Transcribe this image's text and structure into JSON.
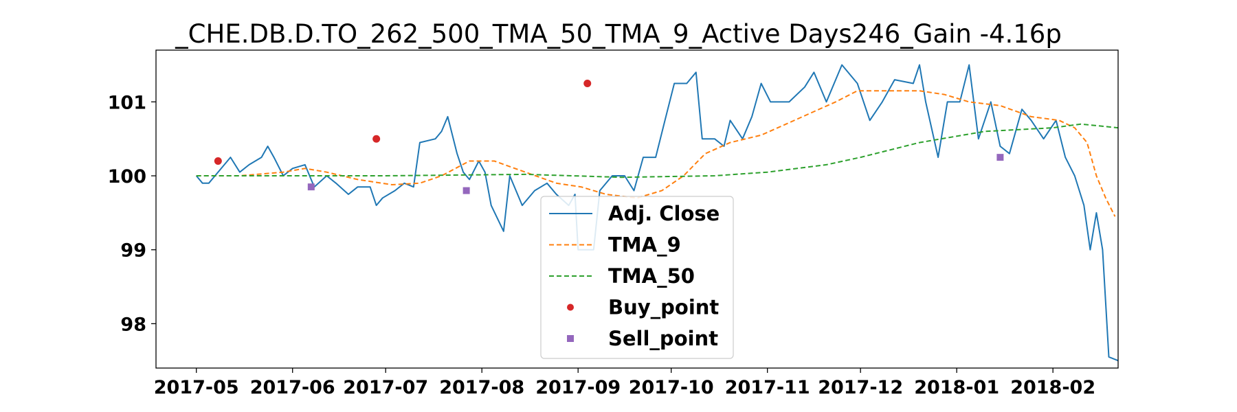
{
  "chart_data": {
    "type": "line",
    "title": "_CHE.DB.D.TO_262_500_TMA_50_TMA_9_Active Days246_Gain  -4.16p",
    "xlabel": "",
    "ylabel": "",
    "x_range": [
      "2017-04-18",
      "2018-02-22"
    ],
    "ylim": [
      97.4,
      101.7
    ],
    "x_ticks": [
      "2017-05",
      "2017-06",
      "2017-07",
      "2017-08",
      "2017-09",
      "2017-10",
      "2017-11",
      "2017-12",
      "2018-01",
      "2018-02"
    ],
    "y_ticks": [
      98,
      99,
      100,
      101
    ],
    "grid": false,
    "legend_position": "lower center",
    "colors": {
      "adj_close": "#1f77b4",
      "tma_9": "#ff7f0e",
      "tma_50": "#2ca02c",
      "buy": "#d62728",
      "sell": "#9467bd"
    },
    "series": [
      {
        "name": "Adj. Close",
        "style": "solid",
        "points": [
          [
            "2017-05-01",
            100.0
          ],
          [
            "2017-05-03",
            99.9
          ],
          [
            "2017-05-05",
            99.9
          ],
          [
            "2017-05-10",
            100.15
          ],
          [
            "2017-05-12",
            100.25
          ],
          [
            "2017-05-15",
            100.05
          ],
          [
            "2017-05-18",
            100.15
          ],
          [
            "2017-05-22",
            100.25
          ],
          [
            "2017-05-24",
            100.4
          ],
          [
            "2017-05-26",
            100.25
          ],
          [
            "2017-05-29",
            100.0
          ],
          [
            "2017-06-01",
            100.1
          ],
          [
            "2017-06-05",
            100.15
          ],
          [
            "2017-06-08",
            99.85
          ],
          [
            "2017-06-12",
            100.0
          ],
          [
            "2017-06-15",
            99.9
          ],
          [
            "2017-06-19",
            99.75
          ],
          [
            "2017-06-22",
            99.85
          ],
          [
            "2017-06-26",
            99.85
          ],
          [
            "2017-06-28",
            99.6
          ],
          [
            "2017-06-30",
            99.7
          ],
          [
            "2017-07-04",
            99.8
          ],
          [
            "2017-07-07",
            99.9
          ],
          [
            "2017-07-10",
            99.85
          ],
          [
            "2017-07-12",
            100.45
          ],
          [
            "2017-07-17",
            100.5
          ],
          [
            "2017-07-19",
            100.6
          ],
          [
            "2017-07-21",
            100.8
          ],
          [
            "2017-07-24",
            100.3
          ],
          [
            "2017-07-26",
            100.05
          ],
          [
            "2017-07-28",
            99.95
          ],
          [
            "2017-07-31",
            100.2
          ],
          [
            "2017-08-02",
            100.05
          ],
          [
            "2017-08-04",
            99.6
          ],
          [
            "2017-08-08",
            99.25
          ],
          [
            "2017-08-10",
            100.0
          ],
          [
            "2017-08-14",
            99.6
          ],
          [
            "2017-08-18",
            99.8
          ],
          [
            "2017-08-22",
            99.9
          ],
          [
            "2017-08-25",
            99.75
          ],
          [
            "2017-08-29",
            99.6
          ],
          [
            "2017-08-31",
            99.75
          ],
          [
            "2017-09-01",
            99.0
          ],
          [
            "2017-09-06",
            99.0
          ],
          [
            "2017-09-08",
            99.8
          ],
          [
            "2017-09-12",
            100.0
          ],
          [
            "2017-09-16",
            100.0
          ],
          [
            "2017-09-19",
            99.8
          ],
          [
            "2017-09-22",
            100.25
          ],
          [
            "2017-09-26",
            100.25
          ],
          [
            "2017-09-29",
            100.75
          ],
          [
            "2017-10-02",
            101.25
          ],
          [
            "2017-10-06",
            101.25
          ],
          [
            "2017-10-09",
            101.4
          ],
          [
            "2017-10-11",
            100.5
          ],
          [
            "2017-10-15",
            100.5
          ],
          [
            "2017-10-18",
            100.4
          ],
          [
            "2017-10-20",
            100.75
          ],
          [
            "2017-10-24",
            100.5
          ],
          [
            "2017-10-27",
            100.8
          ],
          [
            "2017-10-30",
            101.25
          ],
          [
            "2017-11-02",
            101.0
          ],
          [
            "2017-11-08",
            101.0
          ],
          [
            "2017-11-13",
            101.2
          ],
          [
            "2017-11-16",
            101.4
          ],
          [
            "2017-11-20",
            101.0
          ],
          [
            "2017-11-25",
            101.5
          ],
          [
            "2017-11-30",
            101.25
          ],
          [
            "2017-12-04",
            100.75
          ],
          [
            "2017-12-08",
            101.0
          ],
          [
            "2017-12-12",
            101.3
          ],
          [
            "2017-12-18",
            101.25
          ],
          [
            "2017-12-20",
            101.5
          ],
          [
            "2017-12-22",
            101.0
          ],
          [
            "2017-12-26",
            100.25
          ],
          [
            "2017-12-29",
            101.0
          ],
          [
            "2018-01-02",
            101.0
          ],
          [
            "2018-01-05",
            101.5
          ],
          [
            "2018-01-08",
            100.5
          ],
          [
            "2018-01-12",
            101.0
          ],
          [
            "2018-01-15",
            100.4
          ],
          [
            "2018-01-18",
            100.3
          ],
          [
            "2018-01-22",
            100.9
          ],
          [
            "2018-01-25",
            100.75
          ],
          [
            "2018-01-29",
            100.5
          ],
          [
            "2018-02-02",
            100.75
          ],
          [
            "2018-02-05",
            100.25
          ],
          [
            "2018-02-08",
            100.0
          ],
          [
            "2018-02-11",
            99.6
          ],
          [
            "2018-02-13",
            99.0
          ],
          [
            "2018-02-15",
            99.5
          ],
          [
            "2018-02-17",
            99.0
          ],
          [
            "2018-02-19",
            97.55
          ],
          [
            "2018-02-22",
            97.5
          ]
        ]
      },
      {
        "name": "TMA_9",
        "style": "dashed",
        "points": [
          [
            "2017-05-01",
            100.0
          ],
          [
            "2017-05-15",
            100.0
          ],
          [
            "2017-05-29",
            100.05
          ],
          [
            "2017-06-05",
            100.1
          ],
          [
            "2017-06-12",
            100.05
          ],
          [
            "2017-06-22",
            99.95
          ],
          [
            "2017-07-03",
            99.88
          ],
          [
            "2017-07-12",
            99.9
          ],
          [
            "2017-07-19",
            100.0
          ],
          [
            "2017-07-28",
            100.2
          ],
          [
            "2017-08-05",
            100.2
          ],
          [
            "2017-08-15",
            100.05
          ],
          [
            "2017-08-25",
            99.9
          ],
          [
            "2017-09-02",
            99.85
          ],
          [
            "2017-09-10",
            99.75
          ],
          [
            "2017-09-20",
            99.7
          ],
          [
            "2017-09-28",
            99.8
          ],
          [
            "2017-10-05",
            100.0
          ],
          [
            "2017-10-12",
            100.3
          ],
          [
            "2017-10-20",
            100.45
          ],
          [
            "2017-10-30",
            100.55
          ],
          [
            "2017-11-07",
            100.7
          ],
          [
            "2017-11-15",
            100.85
          ],
          [
            "2017-11-23",
            101.0
          ],
          [
            "2017-11-30",
            101.15
          ],
          [
            "2017-12-10",
            101.15
          ],
          [
            "2017-12-20",
            101.15
          ],
          [
            "2017-12-28",
            101.1
          ],
          [
            "2018-01-05",
            101.0
          ],
          [
            "2018-01-15",
            100.95
          ],
          [
            "2018-01-25",
            100.8
          ],
          [
            "2018-02-03",
            100.75
          ],
          [
            "2018-02-08",
            100.65
          ],
          [
            "2018-02-12",
            100.45
          ],
          [
            "2018-02-15",
            100.0
          ],
          [
            "2018-02-18",
            99.7
          ],
          [
            "2018-02-21",
            99.45
          ]
        ]
      },
      {
        "name": "TMA_50",
        "style": "dashed",
        "points": [
          [
            "2017-05-01",
            100.0
          ],
          [
            "2017-07-01",
            100.0
          ],
          [
            "2017-08-15",
            100.02
          ],
          [
            "2017-09-15",
            99.98
          ],
          [
            "2017-10-15",
            100.0
          ],
          [
            "2017-11-01",
            100.05
          ],
          [
            "2017-11-20",
            100.15
          ],
          [
            "2017-12-01",
            100.25
          ],
          [
            "2017-12-20",
            100.45
          ],
          [
            "2018-01-10",
            100.6
          ],
          [
            "2018-02-01",
            100.65
          ],
          [
            "2018-02-10",
            100.7
          ],
          [
            "2018-02-22",
            100.65
          ]
        ]
      }
    ],
    "buy_points": [
      [
        "2017-05-08",
        100.2
      ],
      [
        "2017-06-28",
        100.5
      ],
      [
        "2017-09-04",
        101.25
      ]
    ],
    "sell_points": [
      [
        "2017-06-07",
        99.85
      ],
      [
        "2017-07-27",
        99.8
      ],
      [
        "2018-01-15",
        100.25
      ]
    ],
    "legend": [
      "Adj. Close",
      "TMA_9",
      "TMA_50",
      "Buy_point",
      "Sell_point"
    ]
  }
}
